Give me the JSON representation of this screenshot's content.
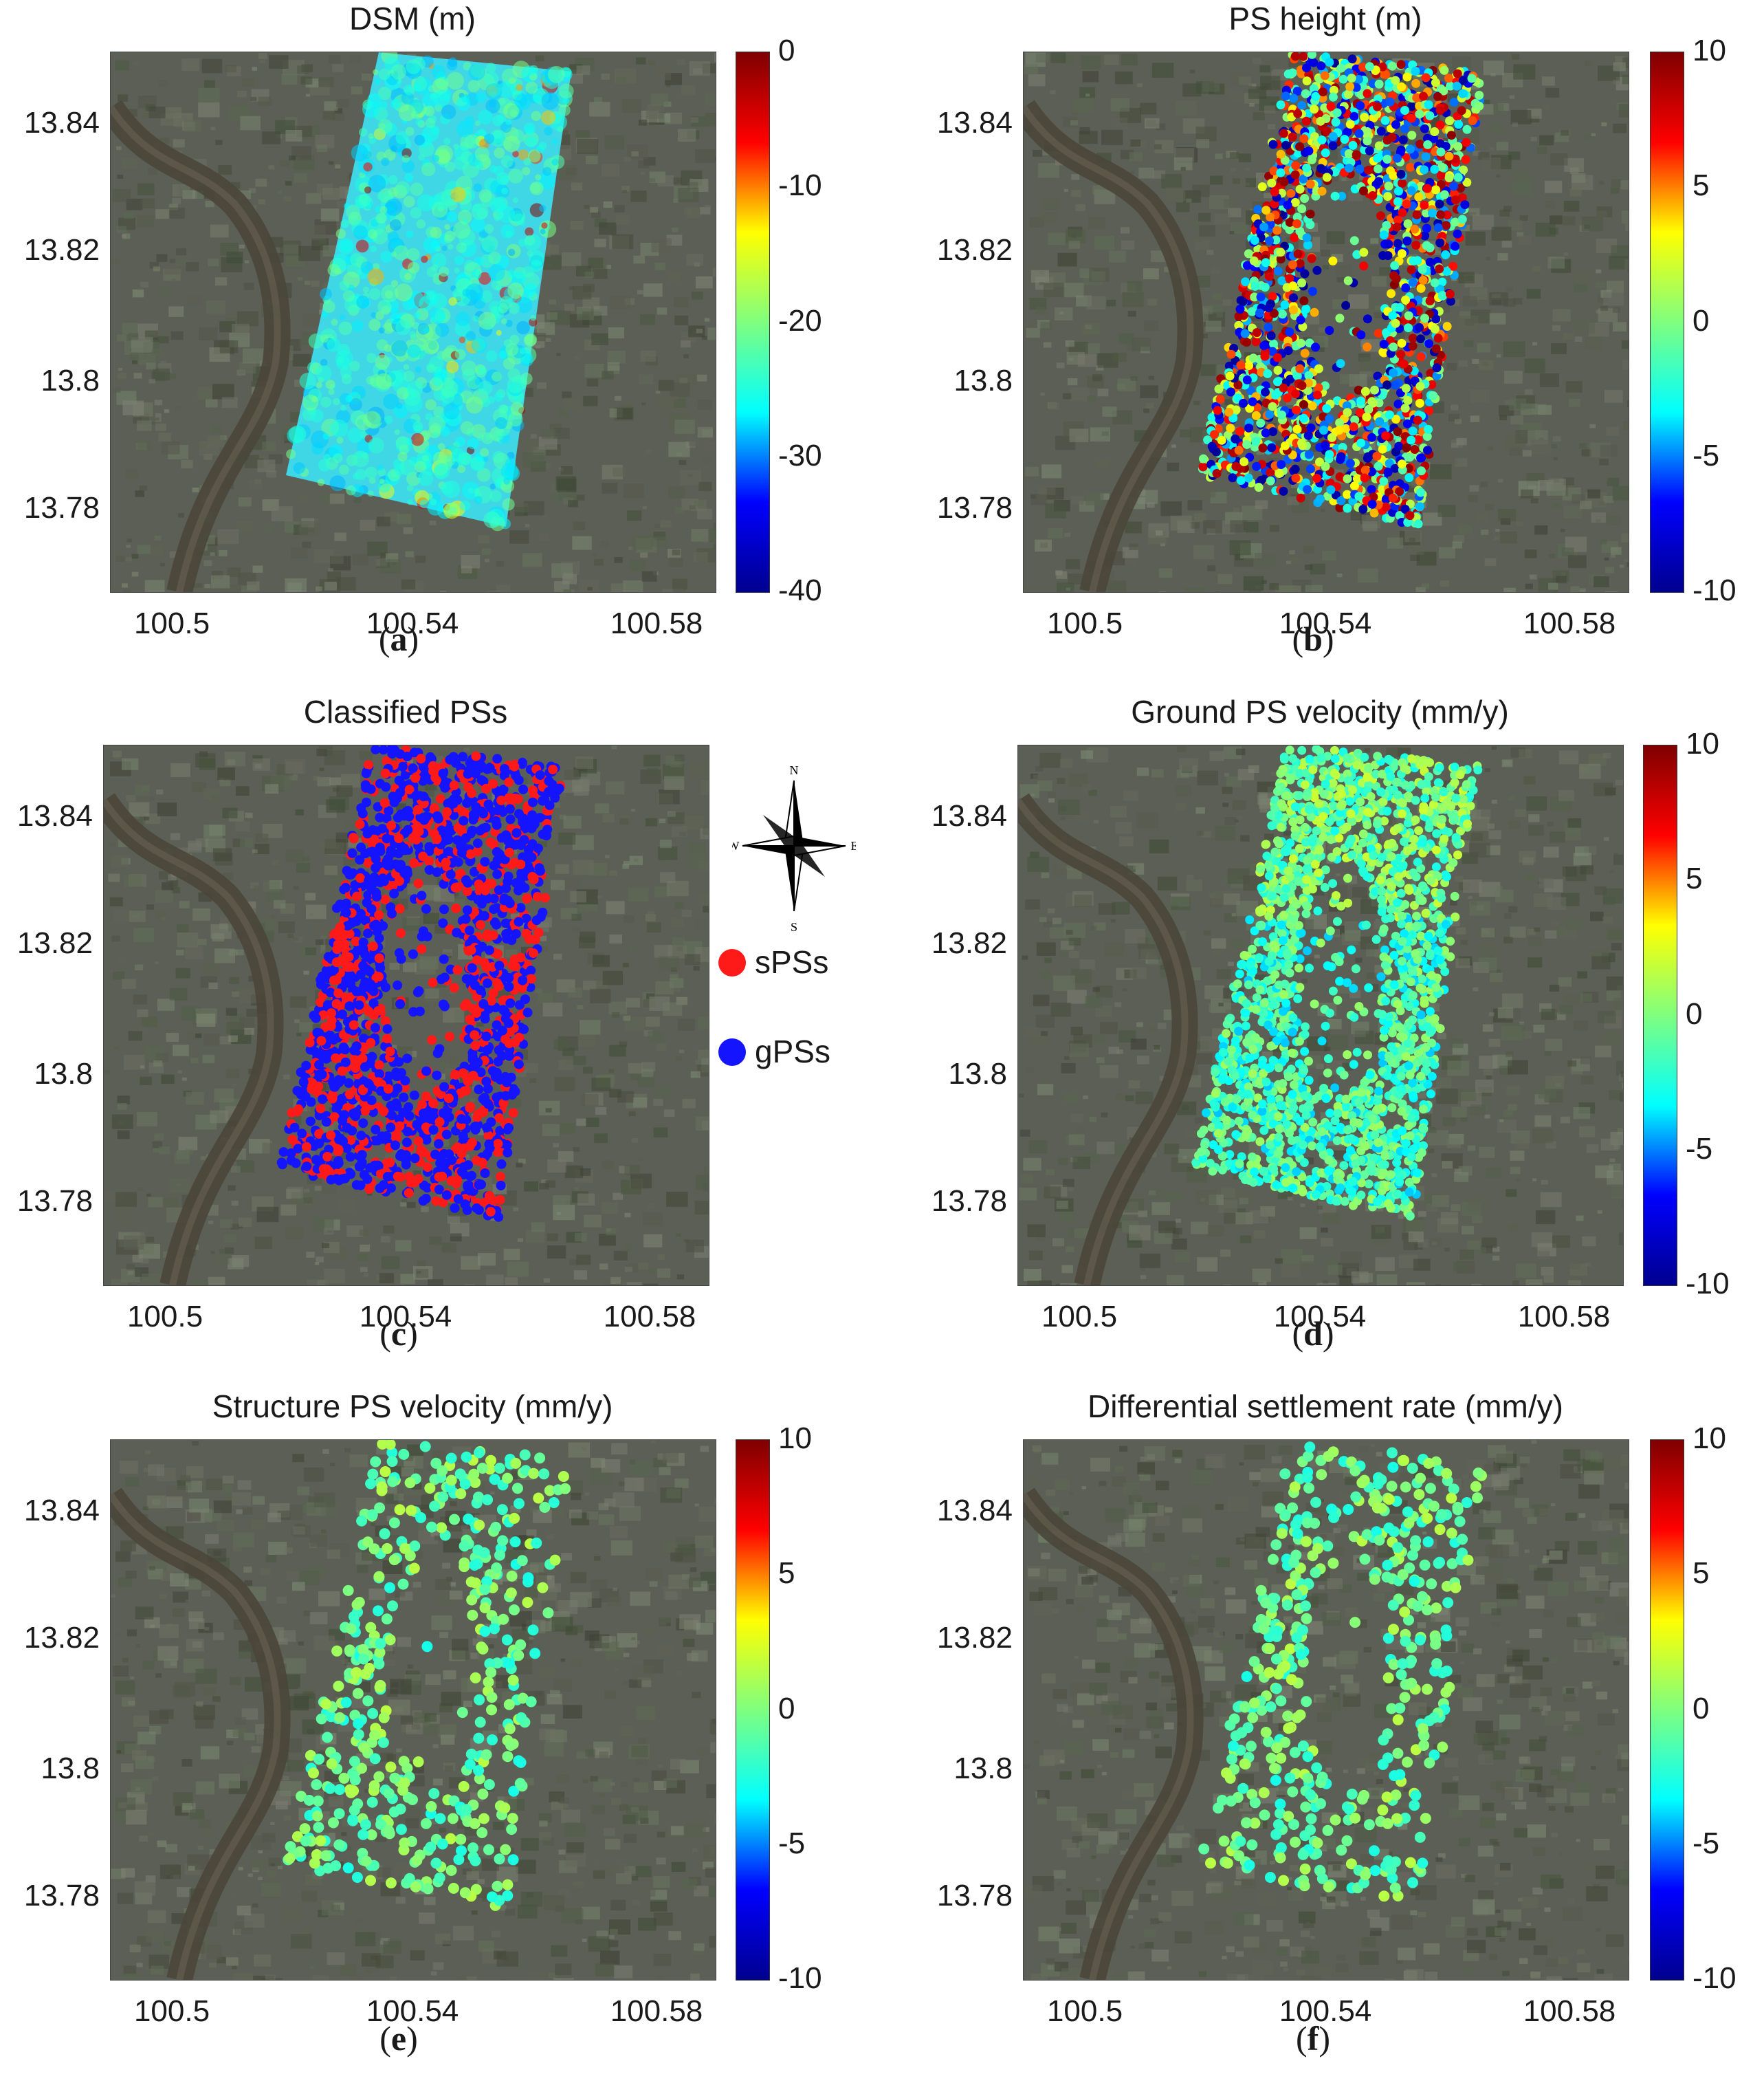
{
  "figure": {
    "panels": [
      {
        "id": "a",
        "title": "DSM (m)",
        "caption_letter": "a",
        "ytick_labels": [
          "13.84",
          "13.82",
          "13.8",
          "13.78"
        ],
        "xtick_labels": [
          "100.5",
          "100.54",
          "100.58"
        ],
        "colorbar_labels": [
          "0",
          "-10",
          "-20",
          "-30",
          "-40"
        ],
        "colorbar_range": [
          -40,
          0
        ],
        "overlay": "raster"
      },
      {
        "id": "b",
        "title": "PS height (m)",
        "caption_letter": "b",
        "ytick_labels": [
          "13.84",
          "13.82",
          "13.8",
          "13.78"
        ],
        "xtick_labels": [
          "100.5",
          "100.54",
          "100.58"
        ],
        "colorbar_labels": [
          "10",
          "5",
          "0",
          "-5",
          "-10"
        ],
        "colorbar_range": [
          -10,
          10
        ],
        "overlay": "dense-points"
      },
      {
        "id": "c",
        "title": "Classified PSs",
        "caption_letter": "c",
        "ytick_labels": [
          "13.84",
          "13.82",
          "13.8",
          "13.78"
        ],
        "xtick_labels": [
          "100.5",
          "100.54",
          "100.58"
        ],
        "overlay": "classified",
        "legend": [
          {
            "label": "sPSs",
            "color": "#ff1a1a"
          },
          {
            "label": "gPSs",
            "color": "#1414ff"
          }
        ],
        "compass_labels": {
          "n": "N",
          "s": "S",
          "e": "E",
          "w": "W"
        }
      },
      {
        "id": "d",
        "title": "Ground PS velocity (mm/y)",
        "caption_letter": "d",
        "ytick_labels": [
          "13.84",
          "13.82",
          "13.8",
          "13.78"
        ],
        "xtick_labels": [
          "100.5",
          "100.54",
          "100.58"
        ],
        "colorbar_labels": [
          "10",
          "5",
          "0",
          "-5",
          "-10"
        ],
        "colorbar_range": [
          -10,
          10
        ],
        "overlay": "dense-points-greenish"
      },
      {
        "id": "e",
        "title": "Structure PS velocity (mm/y)",
        "caption_letter": "e",
        "ytick_labels": [
          "13.84",
          "13.82",
          "13.8",
          "13.78"
        ],
        "xtick_labels": [
          "100.5",
          "100.54",
          "100.58"
        ],
        "colorbar_labels": [
          "10",
          "5",
          "0",
          "-5",
          "-10"
        ],
        "colorbar_range": [
          -10,
          10
        ],
        "overlay": "sparse-points"
      },
      {
        "id": "f",
        "title": "Differential settlement rate (mm/y)",
        "caption_letter": "f",
        "ytick_labels": [
          "13.84",
          "13.82",
          "13.8",
          "13.78"
        ],
        "xtick_labels": [
          "100.5",
          "100.54",
          "100.58"
        ],
        "colorbar_labels": [
          "10",
          "5",
          "0",
          "-5",
          "-10"
        ],
        "colorbar_range": [
          -10,
          10
        ],
        "overlay": "sparse-points"
      }
    ],
    "colors": {
      "satellite_base": "#5b5f55",
      "river": "#4a463a",
      "jet": [
        "#00008f",
        "#0000ff",
        "#00ffff",
        "#7fff7f",
        "#ffff00",
        "#ff0000",
        "#7f0000"
      ]
    }
  }
}
